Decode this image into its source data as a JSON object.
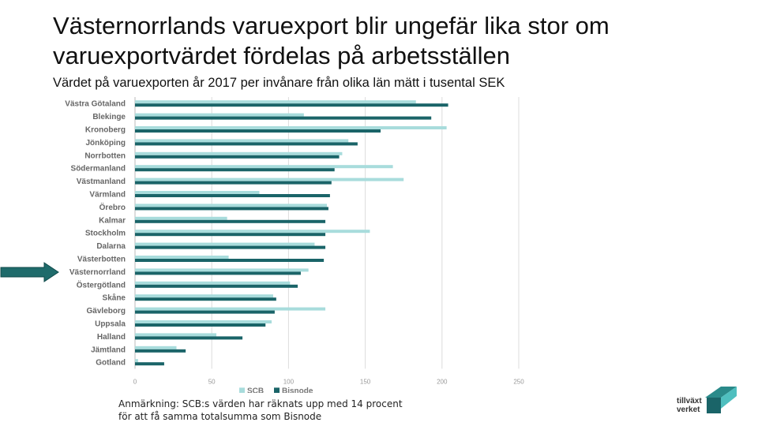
{
  "title": "Västernorrlands varuexport blir ungefär lika stor om varuexportvärdet fördelas på arbetsställen",
  "subtitle": "Värdet på varuexporten år 2017 per invånare från olika län mätt i tusental SEK",
  "note_lines": [
    "Anmärkning: SCB:s värden har räknats upp med 14 procent",
    "för att få samma totalsumma som Bisnode"
  ],
  "logo": {
    "line1": "tillväxt",
    "line2": "verket"
  },
  "colors": {
    "scb": "#a8dcdc",
    "bisnode": "#1a6468",
    "grid": "#dcdcdc",
    "arrow": "#1f6b6b"
  },
  "chart_data": {
    "type": "bar",
    "orientation": "horizontal",
    "title": "",
    "xlabel": "",
    "ylabel": "",
    "xlim": [
      0,
      250
    ],
    "xticks": [
      0,
      50,
      100,
      150,
      200,
      250
    ],
    "legend_position": "bottom",
    "highlighted_category": "Västernorrland",
    "categories": [
      "Västra Götaland",
      "Blekinge",
      "Kronoberg",
      "Jönköping",
      "Norrbotten",
      "Södermanland",
      "Västmanland",
      "Värmland",
      "Örebro",
      "Kalmar",
      "Stockholm",
      "Dalarna",
      "Västerbotten",
      "Västernorrland",
      "Östergötland",
      "Skåne",
      "Gävleborg",
      "Uppsala",
      "Halland",
      "Jämtland",
      "Gotland"
    ],
    "series": [
      {
        "name": "SCB",
        "values": [
          183,
          110,
          203,
          139,
          135,
          168,
          175,
          81,
          125,
          60,
          153,
          117,
          61,
          113,
          101,
          90,
          124,
          89,
          53,
          27,
          2
        ]
      },
      {
        "name": "Bisnode",
        "values": [
          204,
          193,
          160,
          145,
          133,
          130,
          128,
          127,
          126,
          124,
          124,
          124,
          123,
          108,
          106,
          92,
          91,
          85,
          70,
          33,
          19
        ]
      }
    ]
  }
}
